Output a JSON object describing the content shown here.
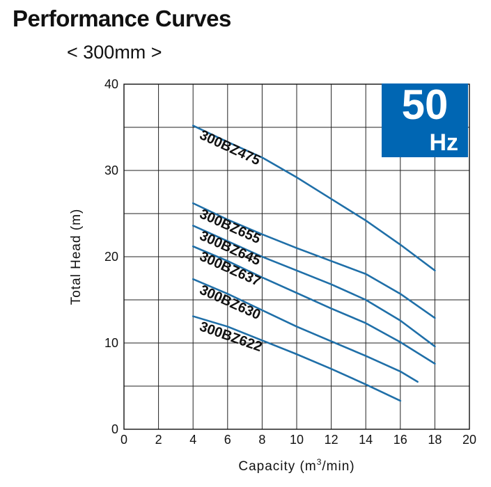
{
  "header": {
    "title": "Performance Curves",
    "subtitle": "< 300mm >"
  },
  "badge": {
    "value": "50",
    "unit": "Hz",
    "color": "#0066b3"
  },
  "chart_data": {
    "type": "line",
    "title": "Performance Curves",
    "subtitle": "< 300mm >",
    "xlabel_main": "Capacity (m",
    "xlabel_sup": "3",
    "xlabel_tail": "/min)",
    "ylabel": "Total Head (m)",
    "xlim": [
      0,
      20
    ],
    "ylim": [
      0,
      40
    ],
    "xticks": [
      0,
      2,
      4,
      6,
      8,
      10,
      12,
      14,
      16,
      18,
      20
    ],
    "yticks": [
      0,
      10,
      20,
      30,
      40
    ],
    "xtick_labels": [
      "0",
      "2",
      "4",
      "6",
      "8",
      "10",
      "12",
      "14",
      "16",
      "18",
      "20"
    ],
    "ytick_labels": [
      "0",
      "10",
      "20",
      "30",
      "40"
    ],
    "grid": true,
    "line_color": "#1f6fa8",
    "series": [
      {
        "name": "300BZ475",
        "x": [
          4,
          6,
          8,
          10,
          12,
          14,
          16,
          18
        ],
        "y": [
          35.2,
          33.3,
          31.5,
          29.2,
          26.7,
          24.2,
          21.4,
          18.4
        ]
      },
      {
        "name": "300BZ655",
        "x": [
          4,
          6,
          8,
          10,
          12,
          14,
          16,
          18
        ],
        "y": [
          26.2,
          24.3,
          22.6,
          21.0,
          19.5,
          18.0,
          15.7,
          12.9
        ]
      },
      {
        "name": "300BZ645",
        "x": [
          4,
          6,
          8,
          10,
          12,
          14,
          16,
          18
        ],
        "y": [
          23.6,
          21.8,
          20.0,
          18.4,
          16.8,
          15.0,
          12.6,
          9.6
        ]
      },
      {
        "name": "300BZ637",
        "x": [
          4,
          6,
          8,
          10,
          12,
          14,
          16,
          18
        ],
        "y": [
          21.2,
          19.5,
          17.6,
          15.8,
          14.0,
          12.3,
          10.1,
          7.6
        ]
      },
      {
        "name": "300BZ630",
        "x": [
          4,
          6,
          8,
          10,
          12,
          14,
          16,
          17
        ],
        "y": [
          17.4,
          15.7,
          13.8,
          11.9,
          10.2,
          8.5,
          6.7,
          5.5
        ]
      },
      {
        "name": "300BZ622",
        "x": [
          4,
          6,
          8,
          10,
          12,
          14,
          16
        ],
        "y": [
          13.1,
          11.9,
          10.3,
          8.7,
          7.0,
          5.2,
          3.3
        ]
      }
    ]
  }
}
